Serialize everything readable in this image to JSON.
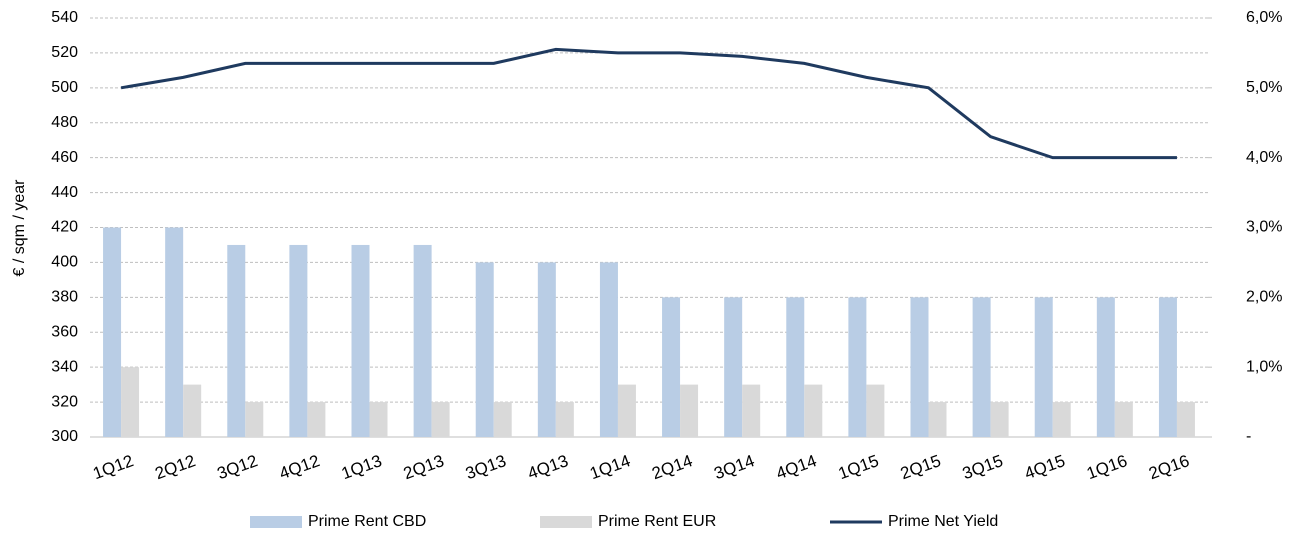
{
  "chart_data": {
    "type": "bar_line",
    "ylabel": "€ / sqm / year",
    "categories": [
      "1Q12",
      "2Q12",
      "3Q12",
      "4Q12",
      "1Q13",
      "2Q13",
      "3Q13",
      "4Q13",
      "1Q14",
      "2Q14",
      "3Q14",
      "4Q14",
      "1Q15",
      "2Q15",
      "3Q15",
      "4Q15",
      "1Q16",
      "2Q16"
    ],
    "series": [
      {
        "name": "Prime Rent CBD",
        "type": "bar",
        "color": "#b9cde5",
        "values": [
          420,
          420,
          410,
          410,
          410,
          410,
          400,
          400,
          400,
          380,
          380,
          380,
          380,
          380,
          380,
          380,
          380,
          380
        ]
      },
      {
        "name": "Prime Rent EUR",
        "type": "bar",
        "color": "#d9d9d9",
        "values": [
          340,
          330,
          320,
          320,
          320,
          320,
          320,
          320,
          330,
          330,
          330,
          330,
          330,
          320,
          320,
          320,
          320,
          320
        ]
      },
      {
        "name": "Prime Net Yield",
        "type": "line",
        "axis": "y2",
        "color": "#1f3a5f",
        "values": [
          5.0,
          5.15,
          5.35,
          5.35,
          5.35,
          5.35,
          5.35,
          5.55,
          5.5,
          5.5,
          5.45,
          5.35,
          5.15,
          5.0,
          4.3,
          4.0,
          4.0,
          4.0
        ]
      }
    ],
    "ylim": [
      300,
      540
    ],
    "yticks": [
      300,
      320,
      340,
      360,
      380,
      400,
      420,
      440,
      460,
      480,
      500,
      520,
      540
    ],
    "y2lim": [
      0,
      6
    ],
    "y2ticks": [
      {
        "value": 0,
        "label": "-"
      },
      {
        "value": 1,
        "label": "1,0%"
      },
      {
        "value": 2,
        "label": "2,0%"
      },
      {
        "value": 3,
        "label": "3,0%"
      },
      {
        "value": 4,
        "label": "4,0%"
      },
      {
        "value": 5,
        "label": "5,0%"
      },
      {
        "value": 6,
        "label": "6,0%"
      }
    ],
    "grid": true,
    "legend": "bottom"
  }
}
